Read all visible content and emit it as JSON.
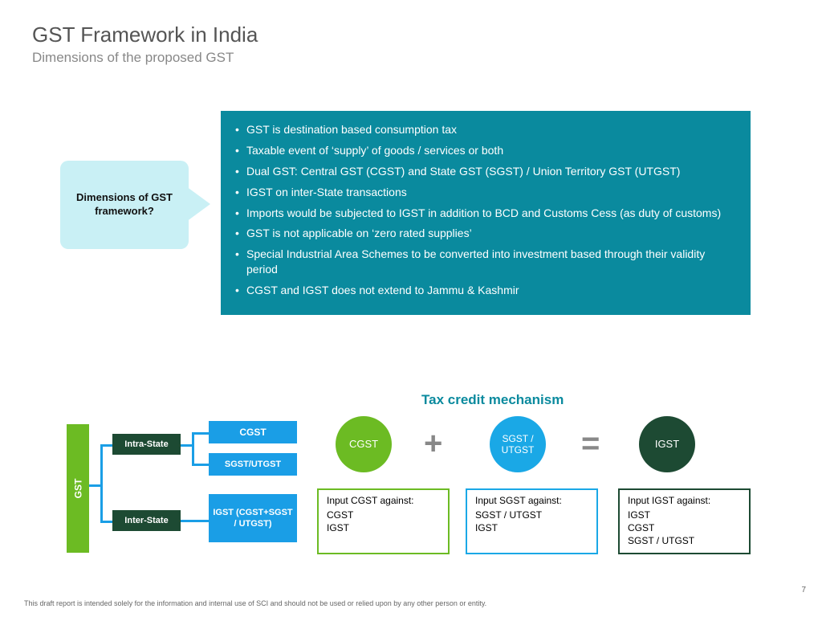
{
  "title": "GST Framework in India",
  "subtitle": "Dimensions of the proposed GST",
  "callout_label": "Dimensions of GST framework?",
  "colors": {
    "panel_bg": "#0a8a9e",
    "callout_bg": "#c9f0f5",
    "green": "#6cbb23",
    "dark_green": "#1d4a33",
    "blue": "#1a9ee6",
    "light_blue": "#1aa8e6",
    "title_text": "#555555",
    "subtitle_text": "#888888"
  },
  "bullets": [
    "GST is destination based consumption tax",
    "Taxable event of ‘supply’ of goods / services or both",
    "Dual GST: Central GST (CGST) and State GST (SGST) / Union Territory GST (UTGST)",
    "IGST on inter-State transactions",
    "Imports would be subjected to IGST in addition to BCD and Customs Cess (as duty of customs)",
    "GST is not applicable on ‘zero rated supplies’",
    "Special Industrial Area Schemes to be converted into investment based through their validity period",
    "CGST and IGST does not extend to Jammu & Kashmir"
  ],
  "mechanism_title": "Tax credit mechanism",
  "tree": {
    "root": "GST",
    "branches": [
      {
        "label": "Intra-State",
        "leaves": [
          "CGST",
          "SGST/UTGST"
        ]
      },
      {
        "label": "Inter-State",
        "leaves": [
          "IGST (CGST+SGST / UTGST)"
        ]
      }
    ]
  },
  "circles": {
    "cgst": "CGST",
    "sgst": "SGST / UTGST",
    "igst": "IGST"
  },
  "input_boxes": [
    {
      "header": "Input CGST against:",
      "items": [
        "CGST",
        "IGST"
      ],
      "border_color": "#6cbb23"
    },
    {
      "header": "Input SGST against:",
      "items": [
        "SGST / UTGST",
        "IGST"
      ],
      "border_color": "#1aa8e6"
    },
    {
      "header": "Input IGST against:",
      "items": [
        "IGST",
        "CGST",
        "SGST / UTGST"
      ],
      "border_color": "#1d4a33"
    }
  ],
  "footer": "This draft report  is intended solely for the information and internal use of SCI and should not be used or relied upon by any other person or entity.",
  "page_number": "7"
}
